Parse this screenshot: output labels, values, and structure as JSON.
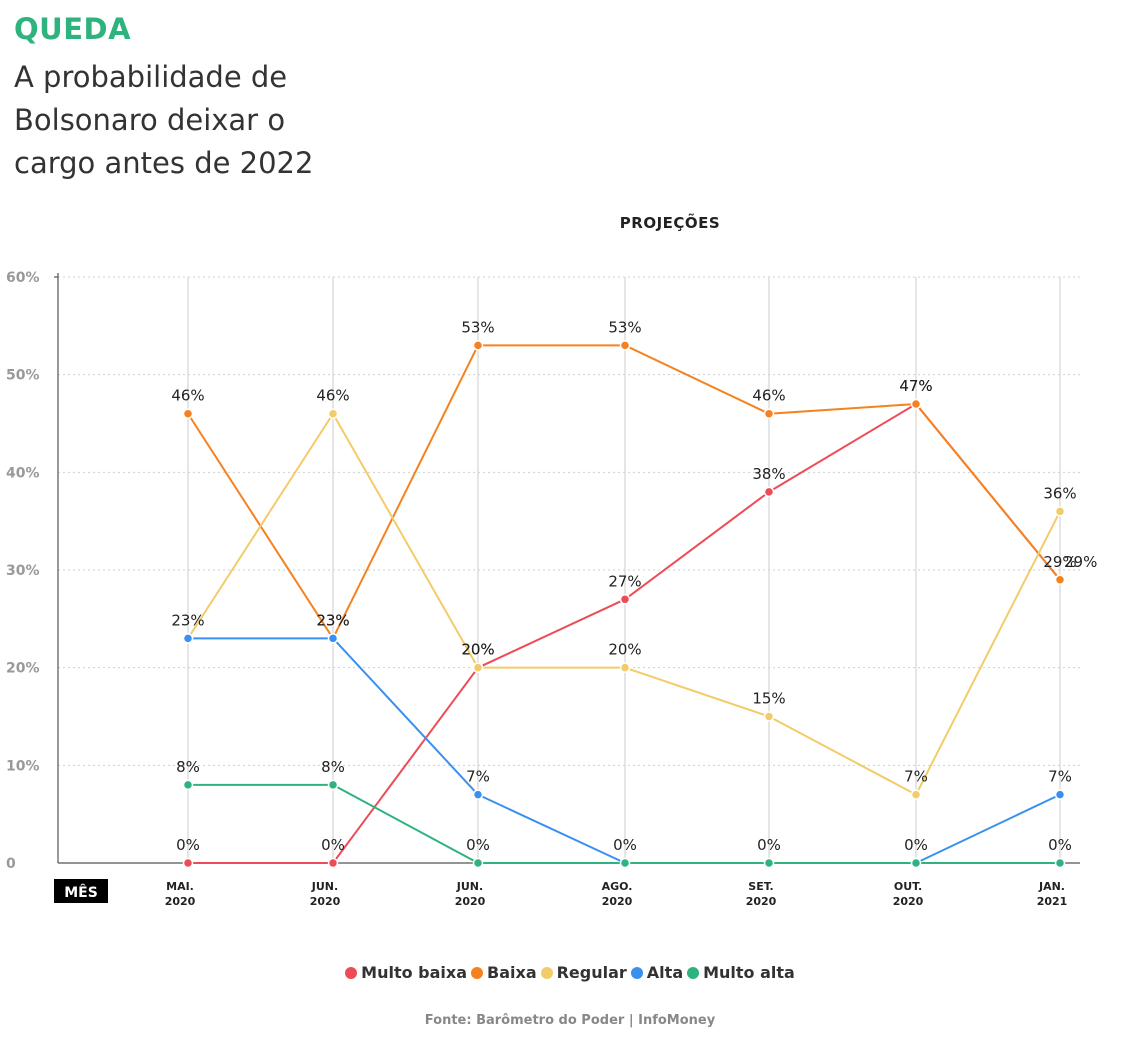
{
  "header": {
    "kicker": "QUEDA",
    "title": "A probabilidade de Bolsonaro deixar o cargo antes de 2022"
  },
  "chart_data": {
    "type": "line",
    "subtitle": "PROJEÇÕES",
    "xlabel": "MÊS",
    "ylim": [
      0,
      60
    ],
    "yticks": [
      0,
      10,
      20,
      30,
      40,
      50,
      60
    ],
    "ytick_labels": [
      "0",
      "10%",
      "20%",
      "30%",
      "40%",
      "50%",
      "60%"
    ],
    "categories": [
      [
        "MAI.",
        "2020"
      ],
      [
        "JUN.",
        "2020"
      ],
      [
        "JUN.",
        "2020"
      ],
      [
        "AGO.",
        "2020"
      ],
      [
        "SET.",
        "2020"
      ],
      [
        "OUT.",
        "2020"
      ],
      [
        "JAN.",
        "2021"
      ]
    ],
    "series": [
      {
        "name": "Multo baixa",
        "color": "#ee4b56",
        "values": [
          0,
          0,
          20,
          27,
          38,
          47,
          29
        ],
        "labels": [
          "0%",
          "0%",
          "20%",
          "27%",
          "38%",
          "47%",
          "29%"
        ]
      },
      {
        "name": "Baixa",
        "color": "#f5821f",
        "values": [
          46,
          23,
          53,
          53,
          46,
          47,
          29
        ],
        "labels": [
          "46%",
          "23%",
          "53%",
          "53%",
          "46%",
          "47%",
          "29%"
        ]
      },
      {
        "name": "Regular",
        "color": "#f3cb69",
        "values": [
          23,
          46,
          20,
          20,
          15,
          7,
          36
        ],
        "labels": [
          "23%",
          "46%",
          "20%",
          "20%",
          "15%",
          "7%",
          "36%"
        ]
      },
      {
        "name": "Alta",
        "color": "#3a90f0",
        "values": [
          23,
          23,
          7,
          0,
          0,
          0,
          7
        ],
        "labels": [
          "",
          "23%",
          "7%",
          "0%",
          "0%",
          "0%",
          "7%"
        ]
      },
      {
        "name": "Multo alta",
        "color": "#2fb37e",
        "values": [
          8,
          8,
          0,
          0,
          0,
          0,
          0
        ],
        "labels": [
          "8%",
          "8%",
          "0%",
          "",
          "",
          "",
          "0%"
        ]
      }
    ],
    "legend": [
      {
        "label": "Multo baixa",
        "color": "#ee4b56"
      },
      {
        "label": "Baixa",
        "color": "#f5821f"
      },
      {
        "label": "Regular",
        "color": "#f3cb69"
      },
      {
        "label": "Alta",
        "color": "#3a90f0"
      },
      {
        "label": "Multo alta",
        "color": "#2fb37e"
      }
    ],
    "source": "Fonte: Barômetro do Poder | InfoMoney"
  }
}
